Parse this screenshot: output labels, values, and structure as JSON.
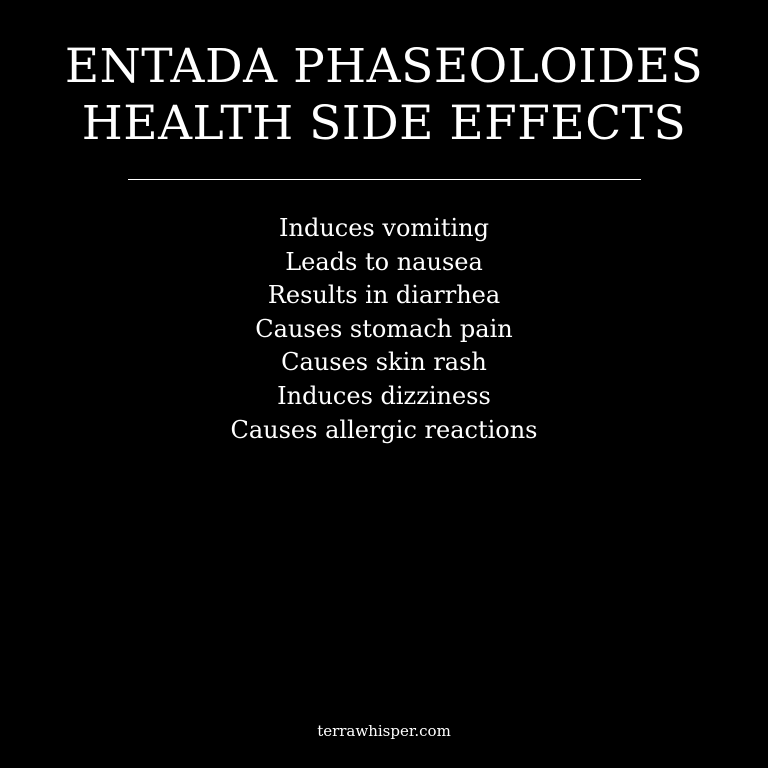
{
  "title": {
    "line1": "ENTADA PHASEOLOIDES",
    "line2": "HEALTH SIDE EFFECTS"
  },
  "side_effects": [
    "Induces vomiting",
    "Leads to nausea",
    "Results in diarrhea",
    "Causes stomach pain",
    "Causes skin rash",
    "Induces dizziness",
    "Causes allergic reactions"
  ],
  "source": "terrawhisper.com",
  "colors": {
    "background": "#000000",
    "text": "#ffffff"
  }
}
